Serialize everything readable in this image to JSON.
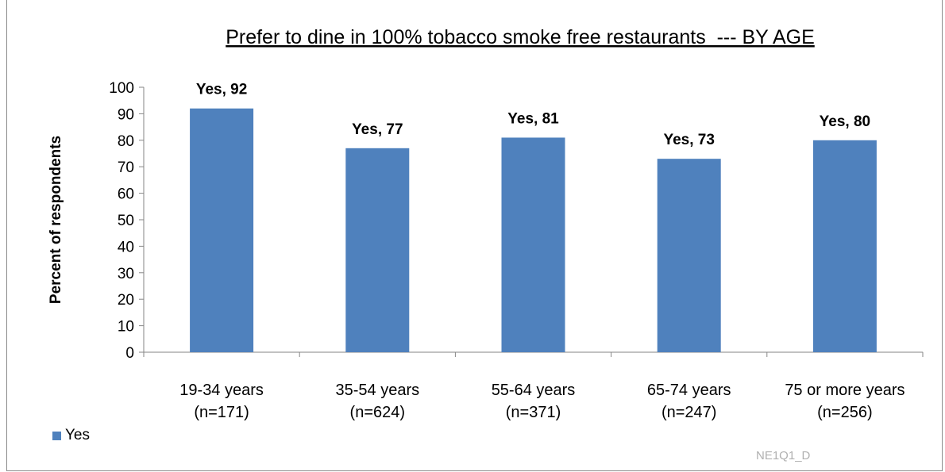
{
  "chart_data": {
    "type": "bar",
    "title": "Prefer to dine in 100% tobacco smoke free restaurants  --- BY AGE",
    "ylabel": "Percent of respondents",
    "xlabel": "",
    "ylim": [
      0,
      100
    ],
    "yticks": [
      0,
      10,
      20,
      30,
      40,
      50,
      60,
      70,
      80,
      90,
      100
    ],
    "grid": false,
    "legend_position": "bottom-left",
    "categories": [
      [
        "19-34 years",
        "(n=171)"
      ],
      [
        "35-54 years",
        "(n=624)"
      ],
      [
        "55-64 years",
        "(n=371)"
      ],
      [
        "65-74 years",
        "(n=247)"
      ],
      [
        "75 or more years",
        "(n=256)"
      ]
    ],
    "series": [
      {
        "name": "Yes",
        "color": "#4f81bd",
        "values": [
          92,
          77,
          81,
          73,
          80
        ],
        "data_labels": [
          "Yes, 92",
          "Yes, 77",
          "Yes, 81",
          "Yes, 73",
          "Yes, 80"
        ]
      }
    ]
  },
  "footer": {
    "code": "NE1Q1_D"
  }
}
